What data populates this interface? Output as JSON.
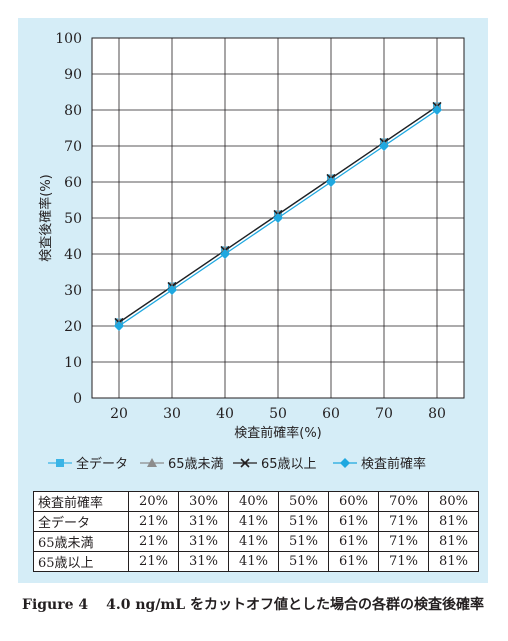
{
  "chart_data": {
    "type": "line",
    "xlabel": "検査前確率(%)",
    "ylabel": "検査後確率(%)",
    "x": [
      20,
      30,
      40,
      50,
      60,
      70,
      80
    ],
    "xlim": [
      15,
      85
    ],
    "ylim": [
      0,
      100
    ],
    "xticks": [
      "20",
      "30",
      "40",
      "50",
      "60",
      "70",
      "80"
    ],
    "yticks": [
      "0",
      "10",
      "20",
      "30",
      "40",
      "50",
      "60",
      "70",
      "80",
      "90",
      "100"
    ],
    "grid": true,
    "legend_position": "bottom",
    "series": [
      {
        "name": "全データ",
        "values": [
          21,
          31,
          41,
          51,
          61,
          71,
          81
        ],
        "color": "#3ab4e6",
        "marker": "square"
      },
      {
        "name": "65歳未満",
        "values": [
          21,
          31,
          41,
          51,
          61,
          71,
          81
        ],
        "color": "#8c8c8c",
        "marker": "triangle"
      },
      {
        "name": "65歳以上",
        "values": [
          21,
          31,
          41,
          51,
          61,
          71,
          81
        ],
        "color": "#231f20",
        "marker": "cross"
      },
      {
        "name": "検査前確率",
        "values": [
          20,
          30,
          40,
          50,
          60,
          70,
          80
        ],
        "color": "#1fa8e0",
        "marker": "diamond"
      }
    ]
  },
  "table": {
    "header": "検査前確率",
    "columns": [
      "20%",
      "30%",
      "40%",
      "50%",
      "60%",
      "70%",
      "80%"
    ],
    "rows": [
      {
        "label": "全データ",
        "cells": [
          "21%",
          "31%",
          "41%",
          "51%",
          "61%",
          "71%",
          "81%"
        ]
      },
      {
        "label": "65歳未満",
        "cells": [
          "21%",
          "31%",
          "41%",
          "51%",
          "61%",
          "71%",
          "81%"
        ]
      },
      {
        "label": "65歳以上",
        "cells": [
          "21%",
          "31%",
          "41%",
          "51%",
          "61%",
          "71%",
          "81%"
        ]
      }
    ]
  },
  "caption": {
    "figure_label": "Figure 4",
    "text_num": "4.0 ng/mL",
    "text_rest": " をカットオフ値とした場合の各群の検査後確率"
  }
}
